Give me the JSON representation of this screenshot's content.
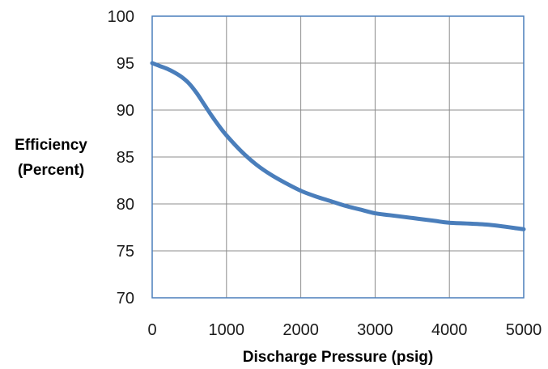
{
  "chart_data": {
    "type": "line",
    "xlabel": "Discharge Pressure (psig)",
    "ylabel_lines": [
      "Efficiency",
      "(Percent)"
    ],
    "xlim": [
      0,
      5000
    ],
    "ylim": [
      70,
      100
    ],
    "x_ticks": [
      0,
      1000,
      2000,
      3000,
      4000,
      5000
    ],
    "y_ticks": [
      70,
      75,
      80,
      85,
      90,
      95,
      100
    ],
    "grid": true,
    "series": [
      {
        "color": "#4a7ebb",
        "x": [
          0,
          100,
          200,
          300,
          400,
          500,
          600,
          700,
          800,
          900,
          1000,
          1200,
          1400,
          1600,
          1800,
          2000,
          2200,
          2400,
          2600,
          2800,
          3000,
          3200,
          3500,
          3800,
          4000,
          4500,
          5000
        ],
        "y": [
          95.0,
          94.7,
          94.4,
          94.0,
          93.5,
          92.8,
          91.8,
          90.6,
          89.4,
          88.3,
          87.3,
          85.6,
          84.2,
          83.1,
          82.2,
          81.4,
          80.8,
          80.3,
          79.8,
          79.4,
          79.0,
          78.8,
          78.5,
          78.2,
          78.0,
          77.8,
          77.3
        ]
      }
    ]
  }
}
